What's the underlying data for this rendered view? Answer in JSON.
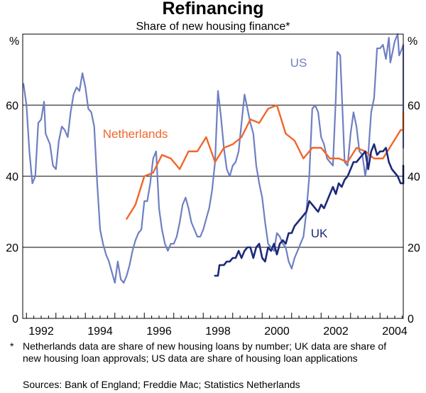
{
  "chart_data": {
    "type": "line",
    "title": "Refinancing",
    "subtitle": "Share of new housing finance*",
    "ylabel_left": "%",
    "ylabel_right": "%",
    "ylim": [
      0,
      80
    ],
    "xlim": [
      1991.4,
      2004.7
    ],
    "yticks": [
      0,
      20,
      40,
      60
    ],
    "ytick_labels": [
      "0",
      "20",
      "40",
      "60"
    ],
    "xticks": [
      1992,
      1994,
      1996,
      1998,
      2000,
      2002,
      2004
    ],
    "xtick_labels": [
      "1992",
      "1994",
      "1996",
      "1998",
      "2000",
      "2002",
      "2004"
    ],
    "grid": "horizontal",
    "series": [
      {
        "name": "US",
        "label": "US",
        "color": "#6f7fc2",
        "points": [
          [
            1991.4,
            66
          ],
          [
            1991.5,
            60
          ],
          [
            1991.6,
            47
          ],
          [
            1991.7,
            38
          ],
          [
            1991.8,
            40
          ],
          [
            1991.9,
            55
          ],
          [
            1992.0,
            56
          ],
          [
            1992.1,
            61
          ],
          [
            1992.15,
            52
          ],
          [
            1992.3,
            49
          ],
          [
            1992.4,
            43
          ],
          [
            1992.5,
            42
          ],
          [
            1992.6,
            50
          ],
          [
            1992.7,
            54
          ],
          [
            1992.8,
            53
          ],
          [
            1992.9,
            51
          ],
          [
            1993.0,
            58
          ],
          [
            1993.1,
            63
          ],
          [
            1993.2,
            65
          ],
          [
            1993.3,
            64
          ],
          [
            1993.4,
            69
          ],
          [
            1993.5,
            65
          ],
          [
            1993.6,
            59
          ],
          [
            1993.7,
            58
          ],
          [
            1993.8,
            54
          ],
          [
            1993.9,
            38
          ],
          [
            1994.0,
            25
          ],
          [
            1994.1,
            21
          ],
          [
            1994.2,
            18
          ],
          [
            1994.3,
            16
          ],
          [
            1994.4,
            13
          ],
          [
            1994.5,
            10
          ],
          [
            1994.6,
            16
          ],
          [
            1994.7,
            11
          ],
          [
            1994.8,
            10
          ],
          [
            1994.9,
            12
          ],
          [
            1995.0,
            15
          ],
          [
            1995.1,
            19
          ],
          [
            1995.2,
            22
          ],
          [
            1995.3,
            24
          ],
          [
            1995.4,
            25
          ],
          [
            1995.5,
            33
          ],
          [
            1995.6,
            33
          ],
          [
            1995.7,
            38
          ],
          [
            1995.8,
            45
          ],
          [
            1995.9,
            47
          ],
          [
            1996.0,
            31
          ],
          [
            1996.1,
            25
          ],
          [
            1996.2,
            21
          ],
          [
            1996.3,
            19
          ],
          [
            1996.4,
            21
          ],
          [
            1996.5,
            21
          ],
          [
            1996.6,
            23
          ],
          [
            1996.7,
            27
          ],
          [
            1996.8,
            32
          ],
          [
            1996.9,
            34
          ],
          [
            1997.0,
            31
          ],
          [
            1997.1,
            27
          ],
          [
            1997.2,
            25
          ],
          [
            1997.3,
            23
          ],
          [
            1997.4,
            23
          ],
          [
            1997.5,
            25
          ],
          [
            1997.6,
            28
          ],
          [
            1997.7,
            31
          ],
          [
            1997.8,
            36
          ],
          [
            1997.9,
            44
          ],
          [
            1998.0,
            64
          ],
          [
            1998.1,
            57
          ],
          [
            1998.2,
            48
          ],
          [
            1998.3,
            42
          ],
          [
            1998.4,
            40
          ],
          [
            1998.5,
            43
          ],
          [
            1998.6,
            44
          ],
          [
            1998.7,
            47
          ],
          [
            1998.8,
            55
          ],
          [
            1998.9,
            63
          ],
          [
            1999.0,
            59
          ],
          [
            1999.1,
            55
          ],
          [
            1999.2,
            52
          ],
          [
            1999.3,
            43
          ],
          [
            1999.4,
            38
          ],
          [
            1999.5,
            34
          ],
          [
            1999.6,
            27
          ],
          [
            1999.7,
            21
          ],
          [
            1999.8,
            20
          ],
          [
            1999.9,
            19
          ],
          [
            2000.0,
            24
          ],
          [
            2000.1,
            23
          ],
          [
            2000.2,
            21
          ],
          [
            2000.3,
            20
          ],
          [
            2000.4,
            16
          ],
          [
            2000.5,
            14
          ],
          [
            2000.6,
            17
          ],
          [
            2000.7,
            19
          ],
          [
            2000.8,
            21
          ],
          [
            2000.9,
            23
          ],
          [
            2001.0,
            30
          ],
          [
            2001.1,
            40
          ],
          [
            2001.2,
            59
          ],
          [
            2001.3,
            60
          ],
          [
            2001.4,
            58
          ],
          [
            2001.5,
            51
          ],
          [
            2001.6,
            49
          ],
          [
            2001.7,
            45
          ],
          [
            2001.8,
            44
          ],
          [
            2001.9,
            43
          ],
          [
            2002.0,
            62
          ],
          [
            2002.05,
            75
          ],
          [
            2002.15,
            74
          ],
          [
            2002.3,
            44
          ],
          [
            2002.4,
            43
          ],
          [
            2002.5,
            52
          ],
          [
            2002.6,
            58
          ],
          [
            2002.7,
            54
          ],
          [
            2002.8,
            47
          ],
          [
            2002.9,
            46
          ],
          [
            2003.0,
            40
          ],
          [
            2003.1,
            46
          ],
          [
            2003.2,
            58
          ],
          [
            2003.3,
            62
          ],
          [
            2003.4,
            76
          ],
          [
            2003.5,
            76
          ],
          [
            2003.6,
            77
          ],
          [
            2003.7,
            73
          ],
          [
            2003.8,
            79
          ],
          [
            2003.85,
            72
          ],
          [
            2003.9,
            74
          ],
          [
            2004.0,
            78
          ],
          [
            2004.1,
            80
          ],
          [
            2004.15,
            74
          ],
          [
            2004.25,
            76
          ],
          [
            2004.3,
            77
          ],
          [
            2004.4,
            55
          ],
          [
            2004.5,
            53
          ],
          [
            2004.6,
            52
          ],
          [
            2004.65,
            50
          ],
          [
            2004.7,
            48
          ]
        ]
      },
      {
        "name": "Netherlands",
        "label": "Netherlands",
        "color": "#f0662a",
        "points": [
          [
            1994.9,
            28
          ],
          [
            1995.2,
            32
          ],
          [
            1995.5,
            40
          ],
          [
            1995.8,
            41
          ],
          [
            1996.1,
            46
          ],
          [
            1996.4,
            45
          ],
          [
            1996.7,
            42
          ],
          [
            1997.0,
            47
          ],
          [
            1997.3,
            47
          ],
          [
            1997.6,
            51
          ],
          [
            1997.9,
            44
          ],
          [
            1998.2,
            48
          ],
          [
            1998.5,
            49
          ],
          [
            1998.8,
            51
          ],
          [
            1999.1,
            56
          ],
          [
            1999.4,
            55
          ],
          [
            1999.7,
            59
          ],
          [
            2000.0,
            60
          ],
          [
            2000.3,
            52
          ],
          [
            2000.6,
            50
          ],
          [
            2000.9,
            45
          ],
          [
            2001.2,
            48
          ],
          [
            2001.5,
            48
          ],
          [
            2001.8,
            45
          ],
          [
            2002.1,
            45
          ],
          [
            2002.4,
            44
          ],
          [
            2002.7,
            48
          ],
          [
            2003.0,
            47
          ],
          [
            2003.3,
            45
          ],
          [
            2003.6,
            45
          ],
          [
            2003.9,
            49
          ],
          [
            2004.2,
            53
          ],
          [
            2004.5,
            53
          ],
          [
            2004.7,
            58
          ]
        ]
      },
      {
        "name": "UK",
        "label": "UK",
        "color": "#1c2a78",
        "points": [
          [
            1997.9,
            12
          ],
          [
            1998.0,
            12
          ],
          [
            1998.05,
            15
          ],
          [
            1998.1,
            15
          ],
          [
            1998.2,
            15
          ],
          [
            1998.3,
            16
          ],
          [
            1998.4,
            16
          ],
          [
            1998.5,
            17
          ],
          [
            1998.6,
            17
          ],
          [
            1998.65,
            18
          ],
          [
            1998.7,
            19
          ],
          [
            1998.8,
            17
          ],
          [
            1998.9,
            19
          ],
          [
            1999.0,
            20
          ],
          [
            1999.1,
            20
          ],
          [
            1999.2,
            17
          ],
          [
            1999.3,
            20
          ],
          [
            1999.4,
            21
          ],
          [
            1999.5,
            17
          ],
          [
            1999.6,
            16
          ],
          [
            1999.7,
            20
          ],
          [
            1999.8,
            19
          ],
          [
            1999.9,
            21
          ],
          [
            2000.0,
            18
          ],
          [
            2000.1,
            21
          ],
          [
            2000.2,
            22
          ],
          [
            2000.3,
            21
          ],
          [
            2000.4,
            24
          ],
          [
            2000.5,
            24
          ],
          [
            2000.6,
            26
          ],
          [
            2000.7,
            27
          ],
          [
            2000.8,
            28
          ],
          [
            2000.9,
            29
          ],
          [
            2001.0,
            30
          ],
          [
            2001.1,
            33
          ],
          [
            2001.2,
            32
          ],
          [
            2001.3,
            31
          ],
          [
            2001.4,
            30
          ],
          [
            2001.5,
            32
          ],
          [
            2001.6,
            31
          ],
          [
            2001.7,
            33
          ],
          [
            2001.8,
            35
          ],
          [
            2001.9,
            37
          ],
          [
            2002.0,
            35
          ],
          [
            2002.1,
            38
          ],
          [
            2002.2,
            37
          ],
          [
            2002.3,
            39
          ],
          [
            2002.4,
            40
          ],
          [
            2002.5,
            42
          ],
          [
            2002.6,
            44
          ],
          [
            2002.7,
            44
          ],
          [
            2002.8,
            45
          ],
          [
            2002.9,
            46
          ],
          [
            2003.0,
            47
          ],
          [
            2003.1,
            42
          ],
          [
            2003.2,
            47
          ],
          [
            2003.3,
            49
          ],
          [
            2003.4,
            46
          ],
          [
            2003.5,
            47
          ],
          [
            2003.6,
            47
          ],
          [
            2003.7,
            48
          ],
          [
            2003.8,
            44
          ],
          [
            2003.9,
            42
          ],
          [
            2004.0,
            41
          ],
          [
            2004.1,
            40
          ],
          [
            2004.2,
            38
          ],
          [
            2004.3,
            38
          ],
          [
            2004.4,
            39
          ],
          [
            2004.5,
            40
          ],
          [
            2004.6,
            42
          ],
          [
            2004.7,
            43
          ]
        ]
      }
    ]
  },
  "footnote": {
    "marker": "*",
    "text": "Netherlands data are share of new housing loans by number; UK data are share of new housing loan approvals; US data are share of housing loan applications"
  },
  "sources": "Sources: Bank of England; Freddie Mac; Statistics Netherlands"
}
